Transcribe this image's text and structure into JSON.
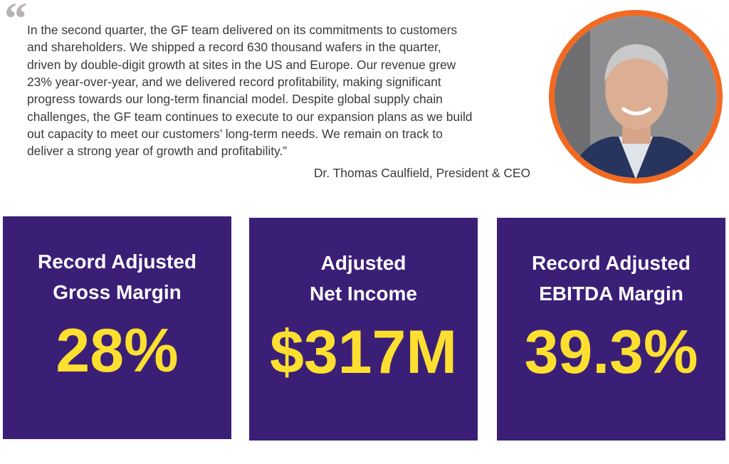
{
  "quote": {
    "mark": "“",
    "lines": [
      "In the second quarter, the GF team delivered on its commitments to customers",
      "and shareholders. We shipped a record 630 thousand wafers in the quarter,",
      "driven by double-digit growth at sites in the US and Europe. Our revenue grew",
      "23% year-over-year, and we delivered record profitability, making significant",
      "progress towards our long-term financial model. Despite global supply chain",
      "challenges, the GF team continues to execute to our expansion plans as we build",
      "out capacity to meet our customers’ long-term needs. We remain on track to",
      "deliver a strong year of growth and profitability.”"
    ],
    "attribution": "Dr. Thomas Caulfield, President & CEO"
  },
  "cards": [
    {
      "title": [
        "Record Adjusted",
        "Gross Margin"
      ],
      "value": "28%"
    },
    {
      "title": [
        "Adjusted",
        "Net Income"
      ],
      "value": "$317M"
    },
    {
      "title": [
        "Record Adjusted",
        "EBITDA Margin"
      ],
      "value": "39.3%"
    }
  ]
}
